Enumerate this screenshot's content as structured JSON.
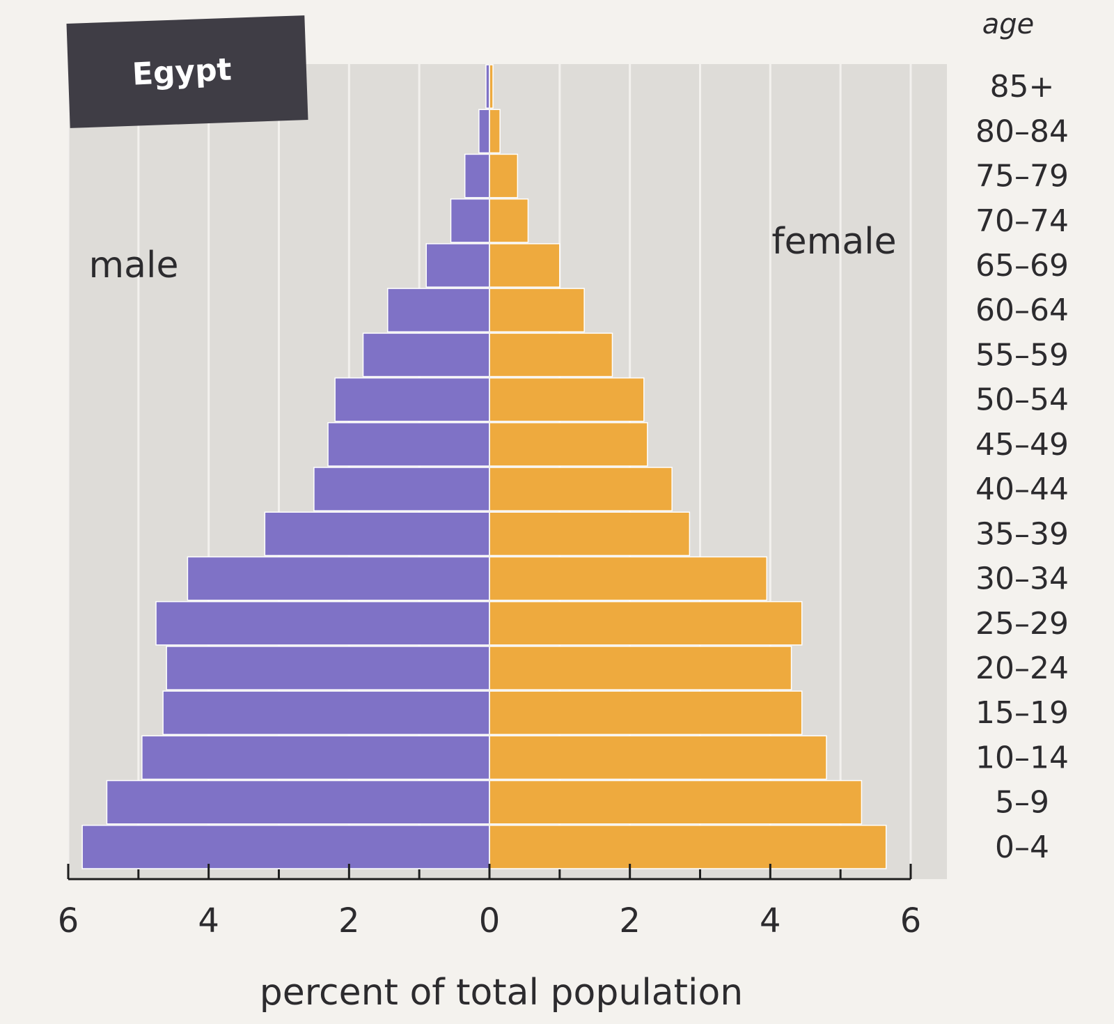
{
  "chart_data": {
    "type": "bar",
    "orientation": "horizontal",
    "layout": "population-pyramid",
    "title": "Egypt",
    "xlabel": "percent of total population",
    "ylabel": "age",
    "xlim": [
      0,
      6
    ],
    "x_ticks": [
      6,
      4,
      2,
      0,
      2,
      4,
      6
    ],
    "grid": true,
    "categories": [
      "85+",
      "80–84",
      "75–79",
      "70–74",
      "65–69",
      "60–64",
      "55–59",
      "50–54",
      "45–49",
      "40–44",
      "35–39",
      "30–34",
      "25–29",
      "20–24",
      "15–19",
      "10–14",
      "5–9",
      "0–4"
    ],
    "series": [
      {
        "name": "male",
        "color": "#7f72c6",
        "values": [
          0.05,
          0.15,
          0.35,
          0.55,
          0.9,
          1.45,
          1.8,
          2.2,
          2.3,
          2.5,
          3.2,
          4.3,
          4.75,
          4.6,
          4.65,
          4.95,
          5.45,
          5.8
        ]
      },
      {
        "name": "female",
        "color": "#eeaa3e",
        "values": [
          0.05,
          0.15,
          0.4,
          0.55,
          1.0,
          1.35,
          1.75,
          2.2,
          2.25,
          2.6,
          2.85,
          3.95,
          4.45,
          4.3,
          4.45,
          4.8,
          5.3,
          5.65
        ]
      }
    ]
  }
}
